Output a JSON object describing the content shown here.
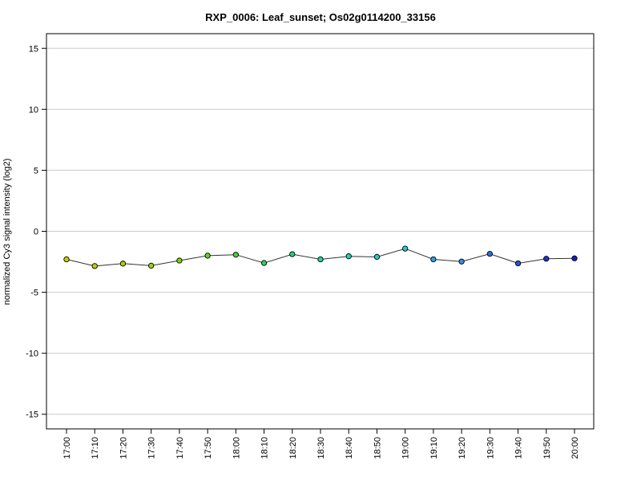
{
  "chart_data": {
    "type": "line",
    "title": "RXP_0006: Leaf_sunset; Os02g0114200_33156",
    "xlabel": "",
    "ylabel": "normalized Cy3 signal intensity (log2)",
    "ylim": [
      -16.2,
      16.2
    ],
    "y_ticks": [
      15,
      10,
      5,
      0,
      -5,
      -10,
      -15
    ],
    "grid": "horizontal",
    "categories": [
      "17:00",
      "17:10",
      "17:20",
      "17:30",
      "17:40",
      "17:50",
      "18:00",
      "18:10",
      "18:20",
      "18:30",
      "18:40",
      "18:50",
      "19:00",
      "19:10",
      "19:20",
      "19:30",
      "19:40",
      "19:50",
      "20:00"
    ],
    "values": [
      -2.3,
      -2.85,
      -2.65,
      -2.82,
      -2.4,
      -2.0,
      -1.92,
      -2.6,
      -1.88,
      -2.3,
      -2.05,
      -2.1,
      -1.42,
      -2.3,
      -2.48,
      -1.85,
      -2.63,
      -2.25,
      -2.22
    ],
    "point_colors": [
      "#CCCC00",
      "#BFCF00",
      "#A8D400",
      "#9BD300",
      "#7CD600",
      "#5AD620",
      "#3FD63F",
      "#2BD45C",
      "#20D47A",
      "#1FD495",
      "#1FD4AE",
      "#1FCFC4",
      "#20C8D8",
      "#2A9EE0",
      "#2E8FE6",
      "#2A6FE0",
      "#2A50D8",
      "#2233C8",
      "#1A1ABF"
    ]
  }
}
